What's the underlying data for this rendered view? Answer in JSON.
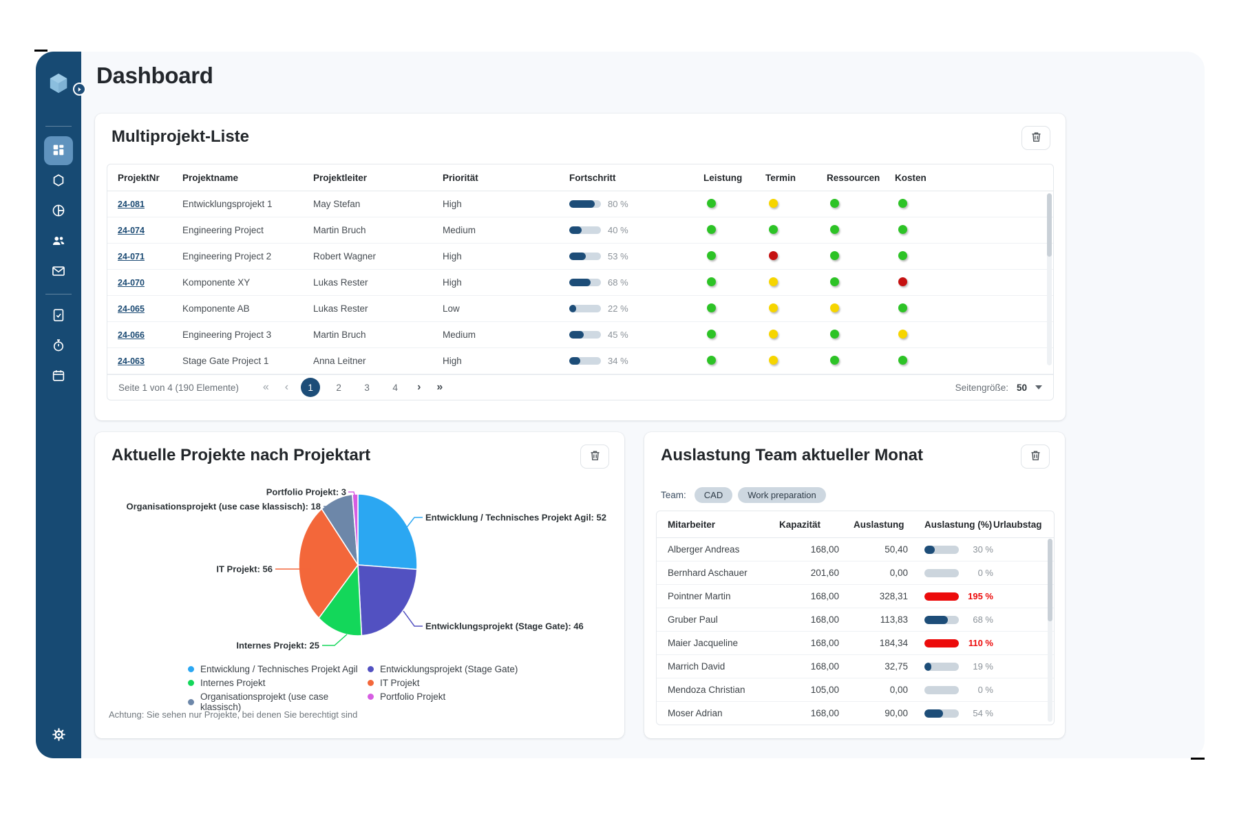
{
  "page": {
    "title": "Dashboard"
  },
  "colors": {
    "sidebar": "#174a73",
    "sidebar_active": "#6093be",
    "accent": "#1d4d78",
    "link": "#1b4a73",
    "progress_track": "#cfd9e2",
    "status_green": "#2dc326",
    "status_yellow": "#f6d500",
    "status_red": "#c51111",
    "over_capacity": "#ec0b0b"
  },
  "sidebar": {
    "logo": "hexagon-logo",
    "toggle": "expand-arrow",
    "items": [
      "dashboard",
      "hexagon",
      "pie-chart",
      "users",
      "mail",
      "document-check",
      "stopwatch",
      "calendar"
    ],
    "settings": "gear"
  },
  "multiproject": {
    "title": "Multiprojekt-Liste",
    "columns": [
      "ProjektNr",
      "Projektname",
      "Projektleiter",
      "Priorität",
      "Fortschritt",
      "Leistung",
      "Termin",
      "Ressourcen",
      "Kosten"
    ],
    "rows": [
      {
        "nr": "24-081",
        "name": "Entwicklungsprojekt 1",
        "leader": "May Stefan",
        "priority": "High",
        "progress": 80,
        "progress_label": "80 %",
        "leistung": "green",
        "termin": "yellow",
        "ressourcen": "green",
        "kosten": "green"
      },
      {
        "nr": "24-074",
        "name": "Engineering Project",
        "leader": "Martin Bruch",
        "priority": "Medium",
        "progress": 40,
        "progress_label": "40 %",
        "leistung": "green",
        "termin": "green",
        "ressourcen": "green",
        "kosten": "green"
      },
      {
        "nr": "24-071",
        "name": "Engineering Project 2",
        "leader": "Robert Wagner",
        "priority": "High",
        "progress": 53,
        "progress_label": "53 %",
        "leistung": "green",
        "termin": "red",
        "ressourcen": "green",
        "kosten": "green"
      },
      {
        "nr": "24-070",
        "name": "Komponente XY",
        "leader": "Lukas Rester",
        "priority": "High",
        "progress": 68,
        "progress_label": "68 %",
        "leistung": "green",
        "termin": "yellow",
        "ressourcen": "green",
        "kosten": "red"
      },
      {
        "nr": "24-065",
        "name": "Komponente AB",
        "leader": "Lukas Rester",
        "priority": "Low",
        "progress": 22,
        "progress_label": "22 %",
        "leistung": "green",
        "termin": "yellow",
        "ressourcen": "yellow",
        "kosten": "green"
      },
      {
        "nr": "24-066",
        "name": "Engineering Project 3",
        "leader": "Martin Bruch",
        "priority": "Medium",
        "progress": 45,
        "progress_label": "45 %",
        "leistung": "green",
        "termin": "yellow",
        "ressourcen": "green",
        "kosten": "yellow"
      },
      {
        "nr": "24-063",
        "name": "Stage Gate Project 1",
        "leader": "Anna Leitner",
        "priority": "High",
        "progress": 34,
        "progress_label": "34 %",
        "leistung": "green",
        "termin": "yellow",
        "ressourcen": "green",
        "kosten": "green"
      }
    ],
    "pagination": {
      "info": "Seite 1 von 4 (190 Elemente)",
      "first": "«",
      "prev": "‹",
      "pages": [
        "1",
        "2",
        "3",
        "4"
      ],
      "current": "1",
      "next": "›",
      "last": "»",
      "size_label": "Seitengröße:",
      "size_value": "50"
    }
  },
  "projects_chart": {
    "title": "Aktuelle Projekte nach Projektart",
    "note": "Achtung: Sie sehen nur Projekte, bei denen Sie berechtigt sind"
  },
  "chart_data": {
    "type": "pie",
    "title": "Aktuelle Projekte nach Projektart",
    "labels": [
      "Entwicklung / Technisches Projekt Agil",
      "Entwicklungsprojekt (Stage Gate)",
      "Internes Projekt",
      "IT Projekt",
      "Organisationsprojekt (use case klassisch)",
      "Portfolio Projekt"
    ],
    "values": [
      52,
      46,
      25,
      56,
      18,
      3
    ],
    "colors": [
      "#2ba7f2",
      "#5251c1",
      "#13d75a",
      "#f3673a",
      "#6d87a9",
      "#d65ee2"
    ],
    "total": 200,
    "label_format": "{label}: {value}",
    "legend_columns": [
      [
        0,
        2,
        4
      ],
      [
        1,
        3,
        5
      ]
    ],
    "legend_position": "bottom"
  },
  "team": {
    "title": "Auslastung Team aktueller Monat",
    "team_label": "Team:",
    "teams": [
      "CAD",
      "Work preparation"
    ],
    "columns": [
      "Mitarbeiter",
      "Kapazität",
      "Auslastung",
      "Auslastung (%)",
      "Urlaubstag"
    ],
    "rows": [
      {
        "name": "Alberger Andreas",
        "capacity": "168,00",
        "load": "50,40",
        "pct": 30,
        "pct_label": "30 %"
      },
      {
        "name": "Bernhard Aschauer",
        "capacity": "201,60",
        "load": "0,00",
        "pct": 0,
        "pct_label": "0 %"
      },
      {
        "name": "Pointner Martin",
        "capacity": "168,00",
        "load": "328,31",
        "pct": 195,
        "pct_label": "195 %"
      },
      {
        "name": "Gruber Paul",
        "capacity": "168,00",
        "load": "113,83",
        "pct": 68,
        "pct_label": "68 %"
      },
      {
        "name": "Maier Jacqueline",
        "capacity": "168,00",
        "load": "184,34",
        "pct": 110,
        "pct_label": "110 %"
      },
      {
        "name": "Marrich David",
        "capacity": "168,00",
        "load": "32,75",
        "pct": 19,
        "pct_label": "19 %"
      },
      {
        "name": "Mendoza Christian",
        "capacity": "105,00",
        "load": "0,00",
        "pct": 0,
        "pct_label": "0 %"
      },
      {
        "name": "Moser Adrian",
        "capacity": "168,00",
        "load": "90,00",
        "pct": 54,
        "pct_label": "54 %"
      }
    ]
  }
}
